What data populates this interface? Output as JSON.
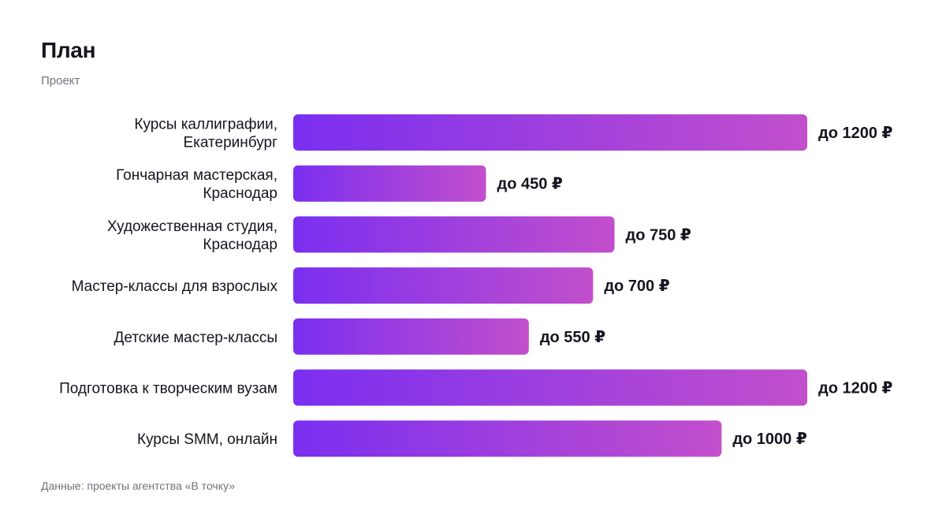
{
  "header": {
    "title": "План",
    "subtitle": "Проект"
  },
  "footer": {
    "source": "Данные: проекты агентства «В точку»"
  },
  "colors": {
    "bar_start": "#7a2ff0",
    "bar_end": "#c24fcc",
    "text": "#15151f",
    "muted": "#70707e"
  },
  "chart_data": {
    "type": "bar",
    "orientation": "horizontal",
    "categories": [
      [
        "Курсы каллиграфии,",
        "Екатеринбург"
      ],
      [
        "Гончарная мастерская,",
        "Краснодар"
      ],
      [
        "Художественная студия,",
        "Краснодар"
      ],
      [
        "Мастер-классы для взрослых"
      ],
      [
        "Детские мастер-классы"
      ],
      [
        "Подготовка к творческим вузам"
      ],
      [
        "Курсы SMM, онлайн"
      ]
    ],
    "values": [
      1200,
      450,
      750,
      700,
      550,
      1200,
      1000
    ],
    "value_labels": [
      "до 1200 ₽",
      "до 450 ₽",
      "до 750 ₽",
      "до 700 ₽",
      "до 550 ₽",
      "до 1200 ₽",
      "до 1000 ₽"
    ],
    "xlim": [
      0,
      1200
    ],
    "grid": false,
    "legend": "none"
  }
}
